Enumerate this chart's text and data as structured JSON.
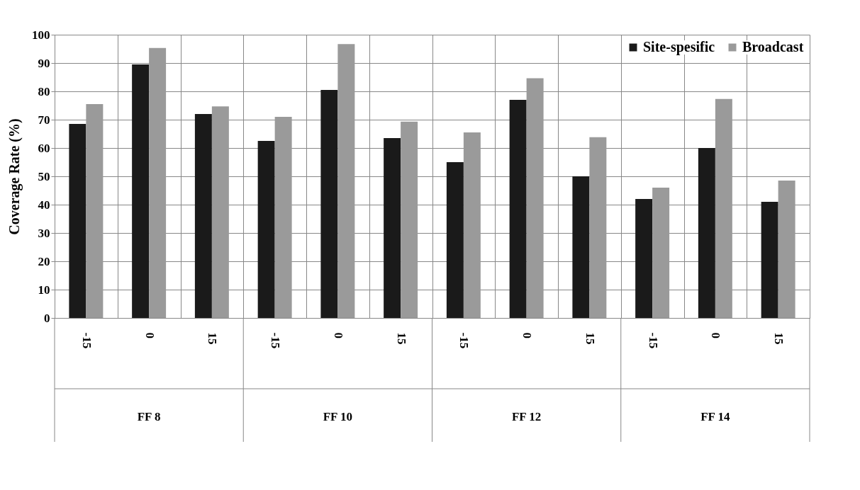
{
  "chart_data": {
    "type": "bar",
    "ylabel": "Coverage Rate   (%)",
    "categories": [
      "-15",
      "0",
      "15",
      "-15",
      "0",
      "15",
      "-15",
      "0",
      "15",
      "-15",
      "0",
      "15"
    ],
    "annotations": [
      "FF 8",
      "FF 10",
      "FF 12",
      "FF 14"
    ],
    "series": [
      {
        "name": "Site-spesific",
        "color": "#1a1a1a",
        "values": [
          68.5,
          89.5,
          72,
          62.5,
          80.5,
          63.5,
          55,
          77,
          50,
          42,
          60,
          41
        ]
      },
      {
        "name": "Broadcast",
        "color": "#9a9a9a",
        "values": [
          75.5,
          95.3,
          74.7,
          71,
          96.7,
          69.3,
          65.5,
          84.6,
          63.8,
          46,
          77.3,
          48.5
        ]
      }
    ],
    "ylim": [
      0,
      100
    ],
    "yticks": [
      0,
      10,
      20,
      30,
      40,
      50,
      60,
      70,
      80,
      90,
      100
    ],
    "grid": "y",
    "legend": "top right"
  }
}
